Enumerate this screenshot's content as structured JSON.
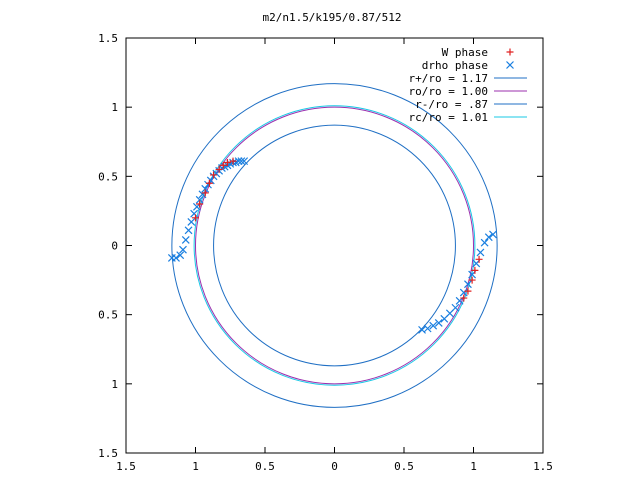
{
  "chart_data": {
    "type": "scatter",
    "title": "m2/n1.5/k195/0.87/512",
    "xlabel": "",
    "ylabel": "",
    "xlim": [
      -1.5,
      1.5
    ],
    "ylim": [
      -1.5,
      1.5
    ],
    "x_ticks": [
      -1.5,
      -1,
      -0.5,
      0,
      0.5,
      1,
      1.5
    ],
    "y_ticks": [
      -1.5,
      -1,
      -0.5,
      0,
      0.5,
      1,
      1.5
    ],
    "x_tick_labels": [
      "1.5",
      "1",
      "0.5",
      "0",
      "0.5",
      "1",
      "1.5"
    ],
    "y_tick_labels": [
      "1.5",
      "1",
      "0.5",
      "0",
      "0.5",
      "1",
      "1.5"
    ],
    "grid": false,
    "legend_position": "top-right",
    "circles": [
      {
        "name": "r+/ro = 1.17",
        "radius": 1.17,
        "color": "#1f6fc4"
      },
      {
        "name": "ro/ro = 1.00",
        "radius": 1.0,
        "color": "#9b2fae"
      },
      {
        "name": "r-/ro = .87",
        "radius": 0.87,
        "color": "#1f6fc4"
      },
      {
        "name": "rc/ro = 1.01",
        "radius": 1.01,
        "color": "#18c8e6"
      }
    ],
    "series": [
      {
        "name": "W phase",
        "marker": "+",
        "color": "#e02020",
        "x": [
          -1.0,
          -0.97,
          -0.93,
          -0.9,
          -0.87,
          -0.83,
          -0.8,
          -0.77,
          -0.73,
          0.93,
          0.96,
          0.99,
          1.01,
          1.04
        ],
        "y": [
          0.2,
          0.3,
          0.38,
          0.45,
          0.51,
          0.55,
          0.58,
          0.6,
          0.61,
          -0.38,
          -0.33,
          -0.25,
          -0.18,
          -0.1
        ]
      },
      {
        "name": "drho phase",
        "marker": "x",
        "color": "#1a7fe0",
        "x": [
          -1.17,
          -1.14,
          -1.11,
          -1.09,
          -1.07,
          -1.05,
          -1.03,
          -1.01,
          -0.99,
          -0.97,
          -0.95,
          -0.93,
          -0.91,
          -0.89,
          -0.87,
          -0.85,
          -0.83,
          -0.81,
          -0.79,
          -0.77,
          -0.75,
          -0.73,
          -0.71,
          -0.69,
          -0.67,
          -0.65,
          0.63,
          0.67,
          0.71,
          0.75,
          0.79,
          0.83,
          0.87,
          0.9,
          0.93,
          0.96,
          0.99,
          1.02,
          1.05,
          1.08,
          1.11,
          1.14
        ],
        "y": [
          -0.09,
          -0.09,
          -0.07,
          -0.03,
          0.04,
          0.11,
          0.17,
          0.23,
          0.28,
          0.33,
          0.37,
          0.41,
          0.44,
          0.47,
          0.5,
          0.52,
          0.54,
          0.56,
          0.57,
          0.58,
          0.59,
          0.6,
          0.6,
          0.61,
          0.61,
          0.61,
          -0.61,
          -0.6,
          -0.58,
          -0.56,
          -0.53,
          -0.49,
          -0.45,
          -0.4,
          -0.34,
          -0.28,
          -0.21,
          -0.13,
          -0.05,
          0.02,
          0.06,
          0.08
        ]
      }
    ]
  }
}
